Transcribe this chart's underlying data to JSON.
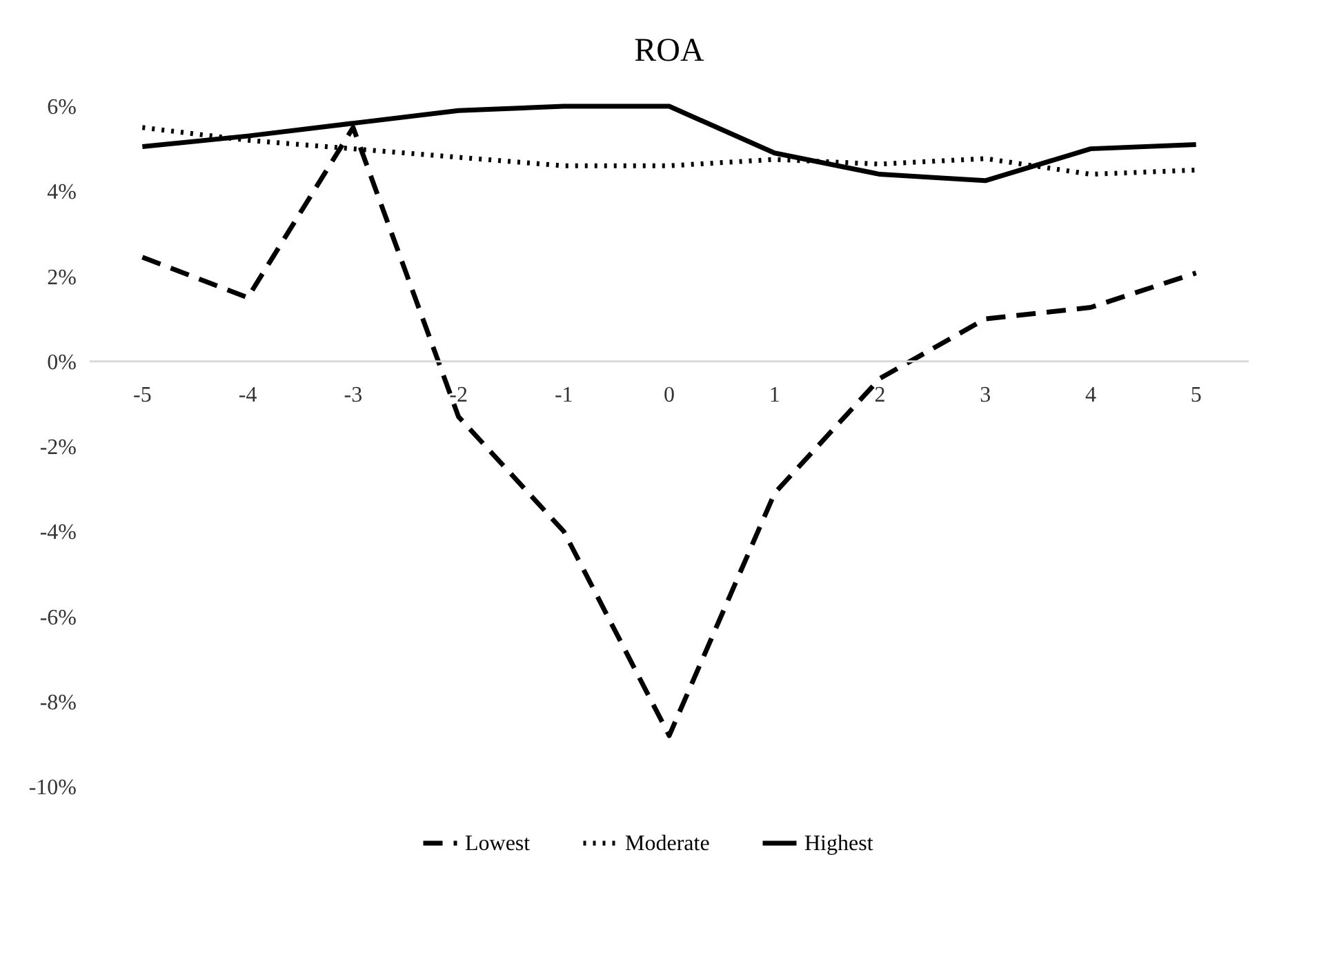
{
  "chart_data": {
    "type": "line",
    "title": "ROA",
    "categories": [
      "-5",
      "-4",
      "-3",
      "-2",
      "-1",
      "0",
      "1",
      "2",
      "3",
      "4",
      "5"
    ],
    "series": [
      {
        "name": "Lowest",
        "color": "#000000",
        "line_style": "dashed",
        "values": [
          2.45,
          1.5,
          5.5,
          -1.3,
          -4.0,
          -8.8,
          -3.1,
          -0.4,
          1.0,
          1.27,
          2.08
        ]
      },
      {
        "name": "Moderate",
        "color": "#000000",
        "line_style": "dotted",
        "values": [
          5.5,
          5.2,
          5.0,
          4.8,
          4.6,
          4.6,
          4.75,
          4.64,
          4.77,
          4.4,
          4.5
        ]
      },
      {
        "name": "Highest",
        "color": "#000000",
        "line_style": "solid",
        "values": [
          5.05,
          5.3,
          5.6,
          5.9,
          6.0,
          6.0,
          4.9,
          4.4,
          4.25,
          5.0,
          5.1
        ]
      }
    ],
    "ylim": [
      -10,
      6
    ],
    "yticks": [
      {
        "value": -10,
        "label": "-10%"
      },
      {
        "value": -8,
        "label": "-8%"
      },
      {
        "value": -6,
        "label": "-6%"
      },
      {
        "value": -4,
        "label": "-4%"
      },
      {
        "value": -2,
        "label": "-2%"
      },
      {
        "value": 0,
        "label": "0%"
      },
      {
        "value": 2,
        "label": "2%"
      },
      {
        "value": 4,
        "label": "4%"
      },
      {
        "value": 6,
        "label": "6%"
      }
    ],
    "grid": false,
    "legend": "bottom",
    "marker": "none"
  }
}
